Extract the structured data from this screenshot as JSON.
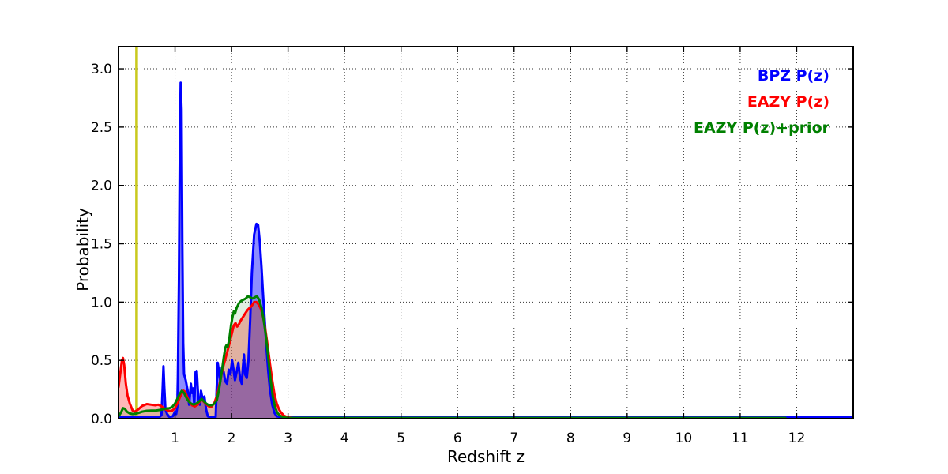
{
  "chart_data": {
    "type": "line",
    "title": "",
    "xlabel": "Redshift z",
    "ylabel": "Probability",
    "xlim": [
      0,
      13
    ],
    "ylim": [
      0,
      3.19
    ],
    "xticks": [
      1,
      2,
      3,
      4,
      5,
      6,
      7,
      8,
      9,
      10,
      11,
      12
    ],
    "yticks": [
      0,
      0.5,
      1,
      1.5,
      2,
      2.5,
      3
    ],
    "ytick_labels": [
      "0.0",
      "0.5",
      "1.0",
      "1.5",
      "2.0",
      "2.5",
      "3.0"
    ],
    "grid": "dotted",
    "legend_position": "top-right-inside",
    "legend": [
      {
        "label": "BPZ P(z)",
        "color": "#0000ff"
      },
      {
        "label": "EAZY P(z)",
        "color": "#ff0000"
      },
      {
        "label": "EAZY P(z)+prior",
        "color": "#008000"
      }
    ],
    "vline": {
      "x": 0.32,
      "color": "#c9c91e"
    },
    "series": [
      {
        "name": "BPZ P(z)",
        "color": "#0000ff",
        "fill_opacity": 0.45,
        "points": [
          [
            0,
            0.012
          ],
          [
            0.5,
            0.012
          ],
          [
            0.72,
            0.013
          ],
          [
            0.76,
            0.03
          ],
          [
            0.78,
            0.25
          ],
          [
            0.795,
            0.45
          ],
          [
            0.81,
            0.28
          ],
          [
            0.83,
            0.08
          ],
          [
            0.86,
            0.04
          ],
          [
            0.9,
            0.015
          ],
          [
            0.96,
            0.02
          ],
          [
            1.0,
            0.06
          ],
          [
            1.02,
            0.04
          ],
          [
            1.04,
            0.1
          ],
          [
            1.05,
            0.35
          ],
          [
            1.07,
            1.2
          ],
          [
            1.085,
            2.3
          ],
          [
            1.1,
            2.88
          ],
          [
            1.115,
            2.65
          ],
          [
            1.13,
            1.5
          ],
          [
            1.145,
            0.65
          ],
          [
            1.16,
            0.38
          ],
          [
            1.19,
            0.33
          ],
          [
            1.22,
            0.25
          ],
          [
            1.25,
            0.12
          ],
          [
            1.28,
            0.3
          ],
          [
            1.3,
            0.22
          ],
          [
            1.32,
            0.26
          ],
          [
            1.34,
            0.12
          ],
          [
            1.365,
            0.4
          ],
          [
            1.385,
            0.41
          ],
          [
            1.41,
            0.18
          ],
          [
            1.44,
            0.12
          ],
          [
            1.46,
            0.24
          ],
          [
            1.49,
            0.16
          ],
          [
            1.52,
            0.19
          ],
          [
            1.55,
            0.08
          ],
          [
            1.58,
            0.02
          ],
          [
            1.62,
            0.012
          ],
          [
            1.72,
            0.015
          ],
          [
            1.74,
            0.3
          ],
          [
            1.755,
            0.48
          ],
          [
            1.78,
            0.4
          ],
          [
            1.8,
            0.32
          ],
          [
            1.83,
            0.44
          ],
          [
            1.86,
            0.4
          ],
          [
            1.89,
            0.32
          ],
          [
            1.92,
            0.3
          ],
          [
            1.95,
            0.42
          ],
          [
            1.98,
            0.38
          ],
          [
            2.01,
            0.5
          ],
          [
            2.03,
            0.44
          ],
          [
            2.06,
            0.33
          ],
          [
            2.09,
            0.4
          ],
          [
            2.12,
            0.48
          ],
          [
            2.15,
            0.35
          ],
          [
            2.18,
            0.3
          ],
          [
            2.2,
            0.44
          ],
          [
            2.22,
            0.55
          ],
          [
            2.24,
            0.38
          ],
          [
            2.27,
            0.35
          ],
          [
            2.3,
            0.5
          ],
          [
            2.33,
            0.85
          ],
          [
            2.36,
            1.25
          ],
          [
            2.4,
            1.58
          ],
          [
            2.44,
            1.67
          ],
          [
            2.47,
            1.66
          ],
          [
            2.5,
            1.52
          ],
          [
            2.53,
            1.3
          ],
          [
            2.56,
            1.05
          ],
          [
            2.59,
            0.82
          ],
          [
            2.62,
            0.6
          ],
          [
            2.65,
            0.4
          ],
          [
            2.68,
            0.25
          ],
          [
            2.72,
            0.12
          ],
          [
            2.76,
            0.05
          ],
          [
            2.8,
            0.02
          ],
          [
            2.9,
            0.012
          ],
          [
            3.5,
            0.012
          ],
          [
            13,
            0.012
          ]
        ]
      },
      {
        "name": "EAZY P(z)",
        "color": "#ff0000",
        "fill_opacity": 0.28,
        "points": [
          [
            0,
            0.27
          ],
          [
            0.03,
            0.38
          ],
          [
            0.06,
            0.5
          ],
          [
            0.08,
            0.52
          ],
          [
            0.1,
            0.46
          ],
          [
            0.13,
            0.3
          ],
          [
            0.16,
            0.2
          ],
          [
            0.2,
            0.13
          ],
          [
            0.25,
            0.07
          ],
          [
            0.29,
            0.06
          ],
          [
            0.35,
            0.08
          ],
          [
            0.42,
            0.11
          ],
          [
            0.5,
            0.125
          ],
          [
            0.58,
            0.12
          ],
          [
            0.65,
            0.115
          ],
          [
            0.7,
            0.12
          ],
          [
            0.75,
            0.11
          ],
          [
            0.8,
            0.09
          ],
          [
            0.85,
            0.075
          ],
          [
            0.9,
            0.065
          ],
          [
            0.95,
            0.07
          ],
          [
            1.0,
            0.09
          ],
          [
            1.05,
            0.14
          ],
          [
            1.1,
            0.2
          ],
          [
            1.15,
            0.24
          ],
          [
            1.18,
            0.23
          ],
          [
            1.22,
            0.18
          ],
          [
            1.26,
            0.14
          ],
          [
            1.3,
            0.115
          ],
          [
            1.35,
            0.105
          ],
          [
            1.4,
            0.12
          ],
          [
            1.44,
            0.15
          ],
          [
            1.48,
            0.16
          ],
          [
            1.52,
            0.14
          ],
          [
            1.56,
            0.12
          ],
          [
            1.6,
            0.105
          ],
          [
            1.65,
            0.105
          ],
          [
            1.7,
            0.14
          ],
          [
            1.75,
            0.21
          ],
          [
            1.8,
            0.33
          ],
          [
            1.85,
            0.44
          ],
          [
            1.9,
            0.53
          ],
          [
            1.95,
            0.62
          ],
          [
            2.0,
            0.72
          ],
          [
            2.04,
            0.8
          ],
          [
            2.07,
            0.82
          ],
          [
            2.1,
            0.79
          ],
          [
            2.13,
            0.81
          ],
          [
            2.16,
            0.84
          ],
          [
            2.2,
            0.87
          ],
          [
            2.24,
            0.9
          ],
          [
            2.28,
            0.93
          ],
          [
            2.32,
            0.95
          ],
          [
            2.36,
            0.97
          ],
          [
            2.4,
            1.0
          ],
          [
            2.44,
            1.0
          ],
          [
            2.48,
            0.98
          ],
          [
            2.52,
            0.94
          ],
          [
            2.56,
            0.87
          ],
          [
            2.6,
            0.76
          ],
          [
            2.64,
            0.62
          ],
          [
            2.68,
            0.47
          ],
          [
            2.72,
            0.33
          ],
          [
            2.76,
            0.21
          ],
          [
            2.8,
            0.13
          ],
          [
            2.84,
            0.08
          ],
          [
            2.88,
            0.05
          ],
          [
            2.93,
            0.025
          ],
          [
            3.0,
            0.01
          ],
          [
            3.1,
            0.005
          ],
          [
            4,
            0.004
          ],
          [
            11.8,
            0.004
          ]
        ]
      },
      {
        "name": "EAZY P(z)+prior",
        "color": "#008000",
        "fill_opacity": 0.12,
        "points": [
          [
            0,
            0.02
          ],
          [
            0.04,
            0.05
          ],
          [
            0.08,
            0.09
          ],
          [
            0.11,
            0.085
          ],
          [
            0.15,
            0.06
          ],
          [
            0.2,
            0.045
          ],
          [
            0.25,
            0.04
          ],
          [
            0.3,
            0.042
          ],
          [
            0.36,
            0.05
          ],
          [
            0.42,
            0.06
          ],
          [
            0.5,
            0.068
          ],
          [
            0.58,
            0.07
          ],
          [
            0.66,
            0.07
          ],
          [
            0.74,
            0.075
          ],
          [
            0.82,
            0.085
          ],
          [
            0.9,
            0.09
          ],
          [
            0.95,
            0.1
          ],
          [
            1.0,
            0.13
          ],
          [
            1.04,
            0.17
          ],
          [
            1.08,
            0.21
          ],
          [
            1.12,
            0.24
          ],
          [
            1.16,
            0.22
          ],
          [
            1.2,
            0.18
          ],
          [
            1.24,
            0.15
          ],
          [
            1.28,
            0.13
          ],
          [
            1.33,
            0.12
          ],
          [
            1.38,
            0.13
          ],
          [
            1.43,
            0.15
          ],
          [
            1.47,
            0.17
          ],
          [
            1.51,
            0.15
          ],
          [
            1.55,
            0.13
          ],
          [
            1.6,
            0.115
          ],
          [
            1.65,
            0.115
          ],
          [
            1.7,
            0.13
          ],
          [
            1.74,
            0.16
          ],
          [
            1.78,
            0.25
          ],
          [
            1.82,
            0.38
          ],
          [
            1.86,
            0.52
          ],
          [
            1.89,
            0.61
          ],
          [
            1.91,
            0.63
          ],
          [
            1.93,
            0.615
          ],
          [
            1.96,
            0.68
          ],
          [
            1.99,
            0.8
          ],
          [
            2.02,
            0.88
          ],
          [
            2.04,
            0.92
          ],
          [
            2.06,
            0.9
          ],
          [
            2.09,
            0.95
          ],
          [
            2.13,
            0.99
          ],
          [
            2.17,
            1.01
          ],
          [
            2.21,
            1.02
          ],
          [
            2.25,
            1.03
          ],
          [
            2.29,
            1.05
          ],
          [
            2.33,
            1.04
          ],
          [
            2.37,
            1.03
          ],
          [
            2.41,
            1.04
          ],
          [
            2.45,
            1.05
          ],
          [
            2.49,
            1.02
          ],
          [
            2.53,
            0.95
          ],
          [
            2.57,
            0.84
          ],
          [
            2.61,
            0.7
          ],
          [
            2.65,
            0.52
          ],
          [
            2.69,
            0.34
          ],
          [
            2.73,
            0.19
          ],
          [
            2.77,
            0.1
          ],
          [
            2.81,
            0.05
          ],
          [
            2.86,
            0.025
          ],
          [
            2.92,
            0.012
          ],
          [
            3.0,
            0.006
          ],
          [
            4,
            0.006
          ],
          [
            11.8,
            0.006
          ]
        ]
      }
    ]
  }
}
